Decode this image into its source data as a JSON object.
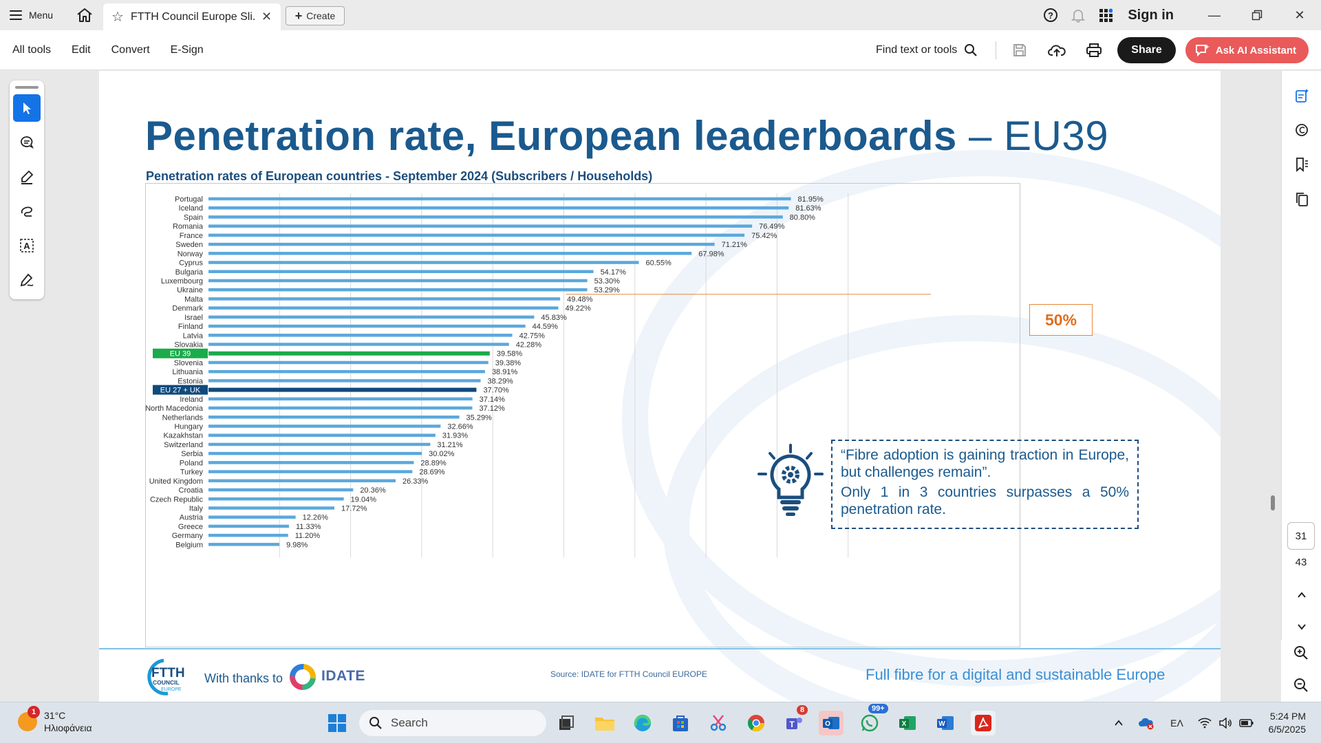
{
  "tabbar": {
    "menu_label": "Menu",
    "tab_title": "FTTH Council Europe Sli...",
    "create_label": "Create",
    "signin_label": "Sign in"
  },
  "toolbar": {
    "menu": [
      "All tools",
      "Edit",
      "Convert",
      "E-Sign"
    ],
    "find_label": "Find text or tools",
    "share_label": "Share",
    "ai_label": "Ask AI Assistant"
  },
  "navigation": {
    "current_page": "31",
    "total_pages": "43"
  },
  "slide": {
    "title_bold": "Penetration rate, European leaderboards",
    "title_light": " – EU39",
    "subtitle": "Penetration rates of European countries - September 2024 (Subscribers / Households)",
    "callout_50": "50%",
    "quote_line1": "“Fibre adoption is gaining traction in Europe, but challenges remain”.",
    "quote_line2": "Only 1 in 3 countries surpasses a 50% penetration rate.",
    "thanks": "With thanks to",
    "idate": "IDATE",
    "source": "Source: IDATE for FTTH Council EUROPE",
    "tagline": "Full fibre for a digital and sustainable Europe",
    "logo_ftth": "FTTH",
    "logo_council": "COUNCIL",
    "logo_europe": "EUROPE"
  },
  "chart_data": {
    "type": "bar",
    "orientation": "horizontal",
    "title": "Penetration rates of European countries - September 2024 (Subscribers / Households)",
    "categories": [
      "Portugal",
      "Iceland",
      "Spain",
      "Romania",
      "France",
      "Sweden",
      "Norway",
      "Cyprus",
      "Bulgaria",
      "Luxembourg",
      "Ukraine",
      "Malta",
      "Denmark",
      "Israel",
      "Finland",
      "Latvia",
      "Slovakia",
      "EU 39",
      "Slovenia",
      "Lithuania",
      "Estonia",
      "EU 27 + UK",
      "Ireland",
      "North Macedonia",
      "Netherlands",
      "Hungary",
      "Kazakhstan",
      "Switzerland",
      "Serbia",
      "Poland",
      "Turkey",
      "United Kingdom",
      "Croatia",
      "Czech Republic",
      "Italy",
      "Austria",
      "Greece",
      "Germany",
      "Belgium"
    ],
    "values": [
      81.95,
      81.63,
      80.8,
      76.49,
      75.42,
      71.21,
      67.98,
      60.55,
      54.17,
      53.3,
      53.29,
      49.48,
      49.22,
      45.83,
      44.59,
      42.75,
      42.28,
      39.58,
      39.38,
      38.91,
      38.29,
      37.7,
      37.14,
      37.12,
      35.29,
      32.66,
      31.93,
      31.21,
      30.02,
      28.89,
      28.69,
      26.33,
      20.36,
      19.04,
      17.72,
      12.26,
      11.33,
      11.2,
      9.98
    ],
    "value_labels": [
      "81.95%",
      "81.63%",
      "80.80%",
      "76.49%",
      "75.42%",
      "71.21%",
      "67.98%",
      "60.55%",
      "54.17%",
      "53.30%",
      "53.29%",
      "49.48%",
      "49.22%",
      "45.83%",
      "44.59%",
      "42.75%",
      "42.28%",
      "39.58%",
      "39.38%",
      "38.91%",
      "38.29%",
      "37.70%",
      "37.14%",
      "37.12%",
      "35.29%",
      "32.66%",
      "31.93%",
      "31.21%",
      "30.02%",
      "28.89%",
      "28.69%",
      "26.33%",
      "20.36%",
      "19.04%",
      "17.72%",
      "12.26%",
      "11.33%",
      "11.20%",
      "9.98%"
    ],
    "highlight": {
      "EU 39": "#1aab4b",
      "EU 27 + UK": "#104a7d"
    },
    "bar_color": "#5ba8dc",
    "reference_line": 50,
    "xlim": [
      0,
      90
    ],
    "gridlines": [
      10,
      20,
      30,
      40,
      50,
      60,
      70,
      80,
      90
    ]
  },
  "taskbar": {
    "weather_temp": "31°C",
    "weather_desc": "Ηλιοφάνεια",
    "weather_badge": "1",
    "search_label": "Search",
    "teams_badge": "8",
    "whatsapp_badge": "99+",
    "lang": "ΕΛ",
    "time": "5:24 PM",
    "date": "6/5/2025"
  }
}
